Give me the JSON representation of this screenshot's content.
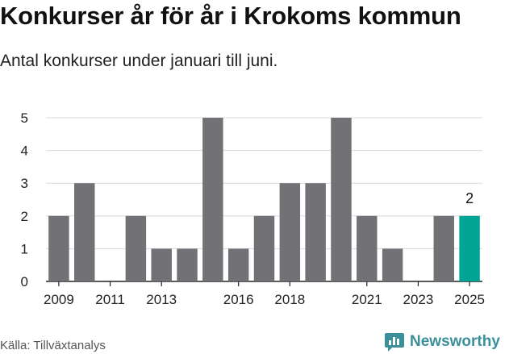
{
  "header": {
    "title": "Konkurser år för år i Krokoms kommun",
    "subtitle": "Antal konkurser under januari till juni."
  },
  "footer": {
    "source": "Källa: Tillväxtanalys",
    "brand": "Newsworthy"
  },
  "colors": {
    "bar": "#727176",
    "highlight": "#00a596",
    "grid": "#d9d9d9",
    "axis": "#222222",
    "brand": "#3a8f9a"
  },
  "chart_data": {
    "type": "bar",
    "categories": [
      "2009",
      "2010",
      "2011",
      "2012",
      "2013",
      "2014",
      "2015",
      "2016",
      "2017",
      "2018",
      "2019",
      "2020",
      "2021",
      "2022",
      "2023",
      "2024",
      "2025"
    ],
    "values": [
      2,
      3,
      0,
      2,
      1,
      1,
      5,
      1,
      2,
      3,
      3,
      5,
      2,
      1,
      0,
      2,
      2
    ],
    "x_tick_labels": [
      "2009",
      "2011",
      "2013",
      "2016",
      "2018",
      "2021",
      "2023",
      "2025"
    ],
    "y_ticks": [
      0,
      1,
      2,
      3,
      4,
      5
    ],
    "ylim": [
      0,
      5
    ],
    "highlight_category": "2025",
    "annotations": [
      {
        "category": "2025",
        "text": "2"
      }
    ],
    "grid": true
  }
}
